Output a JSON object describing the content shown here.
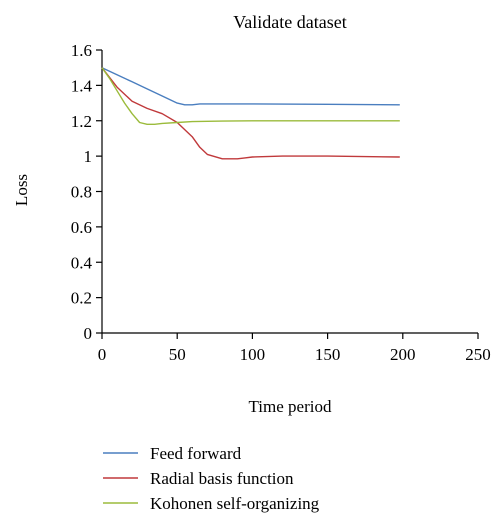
{
  "chart_data": {
    "type": "line",
    "title": "Validate dataset",
    "xlabel": "Time period",
    "ylabel": "Loss",
    "xlim": [
      0,
      250
    ],
    "ylim": [
      0,
      1.6
    ],
    "xticks": [
      0,
      50,
      100,
      150,
      200,
      250
    ],
    "xtick_labels": [
      "0",
      "50",
      "100",
      "150",
      "200",
      "250"
    ],
    "yticks": [
      0,
      0.2,
      0.4,
      0.6,
      0.8,
      1.0,
      1.2,
      1.4,
      1.6
    ],
    "ytick_labels": [
      "0",
      "0.2",
      "0.4",
      "0.6",
      "0.8",
      "1",
      "1.2",
      "1.4",
      "1.6"
    ],
    "grid": false,
    "legend_position": "bottom-left",
    "series": [
      {
        "name": "Feed forward",
        "color": "#4a7ebf",
        "x": [
          0,
          10,
          20,
          30,
          40,
          50,
          55,
          60,
          65,
          80,
          100,
          150,
          198
        ],
        "y": [
          1.5,
          1.46,
          1.42,
          1.38,
          1.34,
          1.3,
          1.29,
          1.29,
          1.295,
          1.295,
          1.295,
          1.293,
          1.29
        ]
      },
      {
        "name": "Radial basis function",
        "color": "#c0393b",
        "x": [
          0,
          10,
          20,
          30,
          40,
          50,
          55,
          60,
          65,
          70,
          80,
          90,
          95,
          100,
          120,
          150,
          198
        ],
        "y": [
          1.5,
          1.39,
          1.31,
          1.27,
          1.24,
          1.19,
          1.15,
          1.11,
          1.05,
          1.01,
          0.985,
          0.985,
          0.99,
          0.995,
          1.0,
          1.0,
          0.995
        ]
      },
      {
        "name": "Kohonen self-organizing",
        "color": "#9bbb3b",
        "x": [
          0,
          5,
          10,
          15,
          20,
          25,
          30,
          35,
          40,
          50,
          60,
          80,
          100,
          150,
          198
        ],
        "y": [
          1.5,
          1.44,
          1.37,
          1.3,
          1.24,
          1.19,
          1.18,
          1.18,
          1.185,
          1.19,
          1.195,
          1.198,
          1.2,
          1.2,
          1.2
        ]
      }
    ]
  }
}
